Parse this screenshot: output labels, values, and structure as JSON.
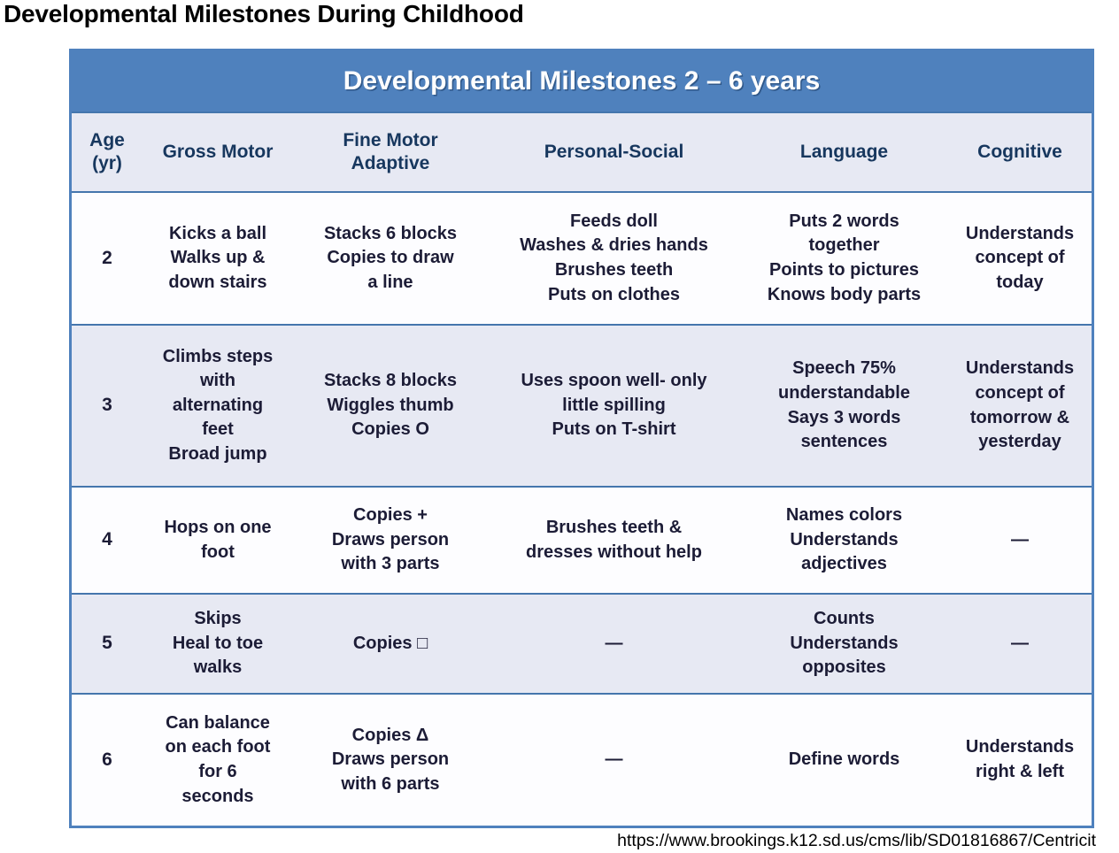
{
  "page": {
    "title": "Developmental Milestones During Childhood",
    "source_url": "https://www.brookings.k12.sd.us/cms/lib/SD01816867/Centricit"
  },
  "colors": {
    "banner_bg": "#4f81bd",
    "banner_text": "#ffffff",
    "header_text": "#17375e",
    "row_alt_bg": "#e7e9f3",
    "row_plain_bg": "#fdfdff",
    "border": "#4576ad",
    "body_text": "#1c1c36"
  },
  "table": {
    "banner": "Developmental Milestones 2 – 6 years",
    "columns": [
      "Age\n(yr)",
      "Gross Motor",
      "Fine Motor\nAdaptive",
      "Personal-Social",
      "Language",
      "Cognitive"
    ],
    "rows": [
      {
        "age": "2",
        "gross": "Kicks a ball\nWalks up &\ndown stairs",
        "fine": "Stacks 6 blocks\nCopies to draw\na line",
        "personal": "Feeds doll\nWashes & dries hands\nBrushes teeth\nPuts on clothes",
        "language": "Puts 2 words\ntogether\nPoints to pictures\nKnows body parts",
        "cognitive": "Understands\nconcept of\ntoday"
      },
      {
        "age": "3",
        "gross": "Climbs steps\nwith\nalternating\nfeet\nBroad jump",
        "fine": "Stacks 8 blocks\nWiggles thumb\nCopies O",
        "personal": "Uses spoon well- only\nlittle spilling\nPuts on T-shirt",
        "language": "Speech 75%\nunderstandable\nSays 3 words\nsentences",
        "cognitive": "Understands\nconcept of\ntomorrow &\nyesterday"
      },
      {
        "age": "4",
        "gross": "Hops on one\nfoot",
        "fine": "Copies +\nDraws person\nwith 3 parts",
        "personal": "Brushes teeth &\ndresses without help",
        "language": "Names colors\nUnderstands\nadjectives",
        "cognitive": "—"
      },
      {
        "age": "5",
        "gross": "Skips\nHeal to toe\nwalks",
        "fine": "Copies □",
        "personal": "—",
        "language": "Counts\nUnderstands\nopposites",
        "cognitive": "—"
      },
      {
        "age": "6",
        "gross": "Can balance\non each foot\nfor 6\nseconds",
        "fine": "Copies Δ\nDraws person\nwith 6 parts",
        "personal": "—",
        "language": "Define words",
        "cognitive": "Understands\nright & left"
      }
    ]
  }
}
